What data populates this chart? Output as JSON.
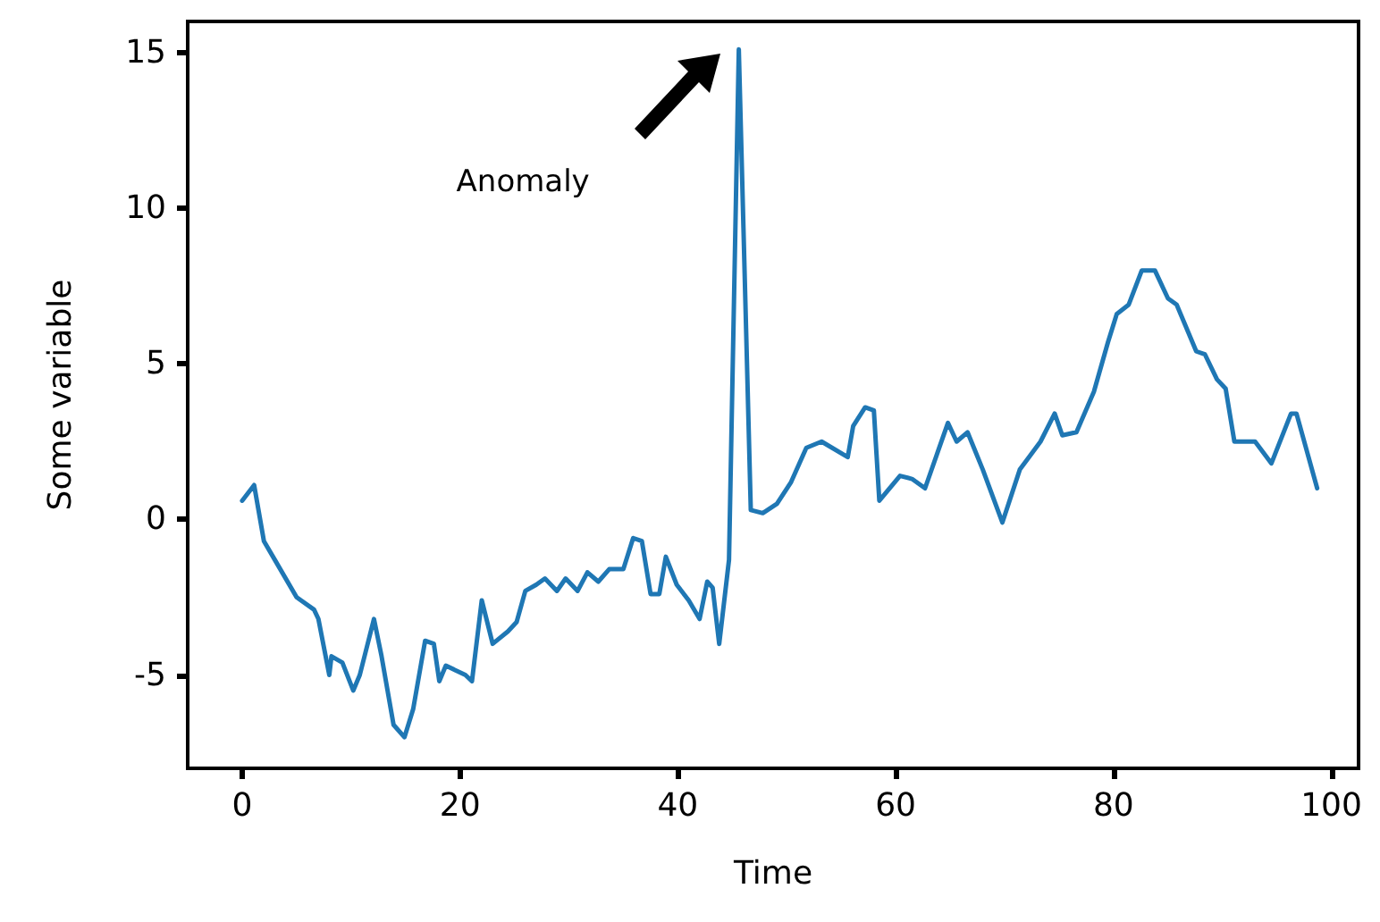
{
  "chart_data": {
    "type": "line",
    "xlabel": "Time",
    "ylabel": "Some variable",
    "x": [
      0,
      1.1,
      2,
      3,
      5,
      6.6,
      7,
      8,
      8.2,
      9.2,
      10.2,
      10.8,
      12.1,
      12.8,
      13.9,
      14.9,
      15.7,
      16.8,
      17.6,
      18.1,
      18.7,
      20.5,
      21.1,
      22,
      23,
      24.4,
      25.2,
      26,
      27,
      27.8,
      28.9,
      29.7,
      30.8,
      31.7,
      32.7,
      33.7,
      35,
      35.9,
      36.7,
      37.5,
      38.3,
      38.9,
      39.9,
      41,
      42,
      42.7,
      43.2,
      43.8,
      44.7,
      45.6,
      46.7,
      47.8,
      49.1,
      50.4,
      51.8,
      53.2,
      55.6,
      56.1,
      57.2,
      58,
      58.5,
      60.4,
      61.5,
      62.7,
      63.9,
      64.8,
      65.6,
      66.6,
      68,
      69.8,
      71.4,
      73.3,
      74.6,
      75.3,
      76.6,
      78.2,
      79.5,
      80.3,
      81.4,
      82.6,
      83.8,
      85,
      85.8,
      87.6,
      88.4,
      89.5,
      90.3,
      91.1,
      93,
      94.5,
      96.3,
      96.8,
      98.7
    ],
    "series": [
      {
        "color": "#1f77b4",
        "values": [
          0.6,
          1.1,
          -0.7,
          -1.3,
          -2.5,
          -2.9,
          -3.2,
          -5.0,
          -4.4,
          -4.6,
          -5.5,
          -5.0,
          -3.2,
          -4.4,
          -6.6,
          -7.0,
          -6.1,
          -3.9,
          -4.0,
          -5.2,
          -4.7,
          -5.0,
          -5.2,
          -2.6,
          -4.0,
          -3.6,
          -3.3,
          -2.3,
          -2.1,
          -1.9,
          -2.3,
          -1.9,
          -2.3,
          -1.7,
          -2.0,
          -1.6,
          -1.6,
          -0.6,
          -0.7,
          -2.4,
          -2.4,
          -1.2,
          -2.1,
          -2.6,
          -3.2,
          -2.0,
          -2.2,
          -4.0,
          -1.3,
          15.1,
          0.3,
          0.2,
          0.5,
          1.2,
          2.3,
          2.5,
          2.0,
          3.0,
          3.6,
          3.5,
          0.6,
          1.4,
          1.3,
          1.0,
          2.2,
          3.1,
          2.5,
          2.8,
          1.6,
          -0.1,
          1.6,
          2.5,
          3.4,
          2.7,
          2.8,
          4.1,
          5.7,
          6.6,
          6.9,
          8.0,
          8.0,
          7.1,
          6.9,
          5.4,
          5.3,
          4.5,
          4.2,
          2.5,
          2.5,
          1.8,
          3.4,
          3.4,
          1.0
        ]
      }
    ],
    "xlim": [
      -5,
      102.5
    ],
    "ylim": [
      -8,
      16
    ],
    "xticks": [
      0,
      20,
      40,
      60,
      80,
      100
    ],
    "yticks": [
      -5,
      0,
      5,
      10,
      15
    ],
    "annotations": [
      "Anomaly"
    ],
    "grid": false,
    "legend": false,
    "marker": "none",
    "line_style": "solid"
  }
}
